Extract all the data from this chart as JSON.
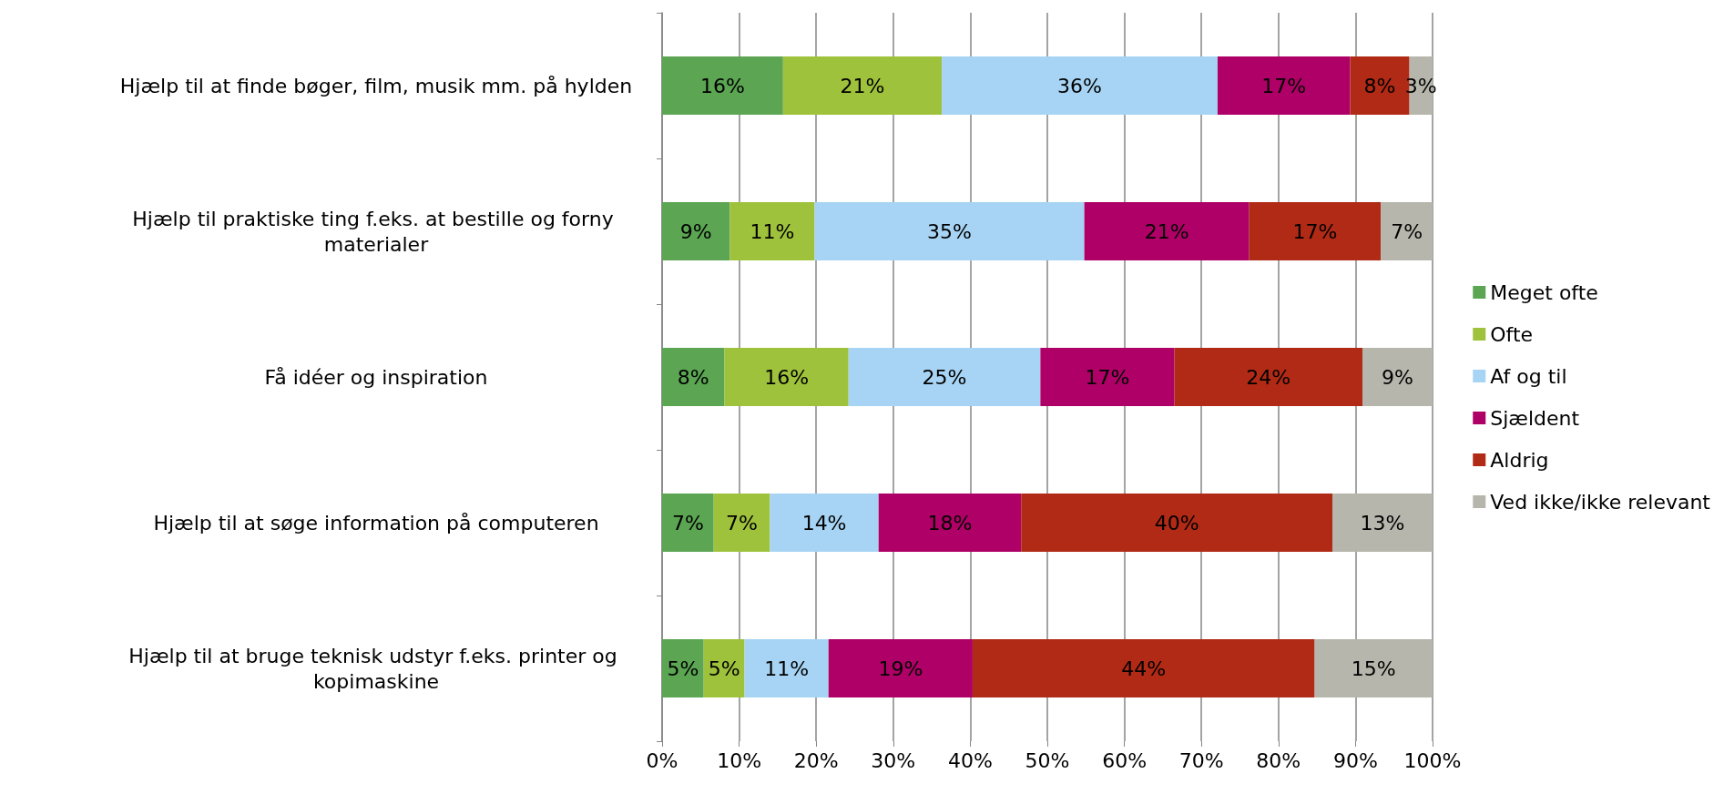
{
  "chart_data": {
    "type": "bar",
    "orientation": "horizontal",
    "stacked": true,
    "categories": [
      "Hjælp til at finde bøger, film, musik mm. på hylden",
      "Hjælp til praktiske ting f.eks. at bestille og forny materialer",
      "Få idéer og inspiration",
      "Hjælp til at søge information på computeren",
      "Hjælp til at bruge teknisk udstyr f.eks. printer og kopimaskine"
    ],
    "series": [
      {
        "name": "Meget ofte",
        "color": "#5ba553",
        "values": [
          15.7,
          8.8,
          8.1,
          6.7,
          5.4
        ],
        "value_labels": [
          "16%",
          "9%",
          "8%",
          "7%",
          "5%"
        ]
      },
      {
        "name": "Ofte",
        "color": "#9fc23c",
        "values": [
          20.6,
          11.0,
          16.1,
          7.3,
          5.3
        ],
        "value_labels": [
          "21%",
          "11%",
          "16%",
          "7%",
          "5%"
        ]
      },
      {
        "name": "Af og til",
        "color": "#a7d4f4",
        "values": [
          35.8,
          35.0,
          24.9,
          14.1,
          10.9
        ],
        "value_labels": [
          "36%",
          "35%",
          "25%",
          "14%",
          "11%"
        ]
      },
      {
        "name": "Sjældent",
        "color": "#ae0066",
        "values": [
          17.2,
          21.4,
          17.4,
          18.5,
          18.7
        ],
        "value_labels": [
          "17%",
          "21%",
          "17%",
          "18%",
          "19%"
        ]
      },
      {
        "name": "Aldrig",
        "color": "#b02a16",
        "values": [
          7.7,
          17.1,
          24.4,
          40.4,
          44.4
        ],
        "value_labels": [
          "8%",
          "17%",
          "24%",
          "40%",
          "44%"
        ]
      },
      {
        "name": "Ved ikke/ikke relevant",
        "color": "#b6b6ac",
        "values": [
          3.0,
          6.7,
          9.1,
          13.0,
          15.3
        ],
        "value_labels": [
          "3%",
          "7%",
          "9%",
          "13%",
          "15%"
        ]
      }
    ],
    "xlim": [
      0,
      100
    ],
    "xticks": [
      {
        "value": 0,
        "label": "0%"
      },
      {
        "value": 10,
        "label": "10%"
      },
      {
        "value": 20,
        "label": "20%"
      },
      {
        "value": 30,
        "label": "30%"
      },
      {
        "value": 40,
        "label": "40%"
      },
      {
        "value": 50,
        "label": "50%"
      },
      {
        "value": 60,
        "label": "60%"
      },
      {
        "value": 70,
        "label": "70%"
      },
      {
        "value": 80,
        "label": "80%"
      },
      {
        "value": 90,
        "label": "90%"
      },
      {
        "value": 100,
        "label": "100%"
      }
    ],
    "grid": "x",
    "legend": "right"
  }
}
